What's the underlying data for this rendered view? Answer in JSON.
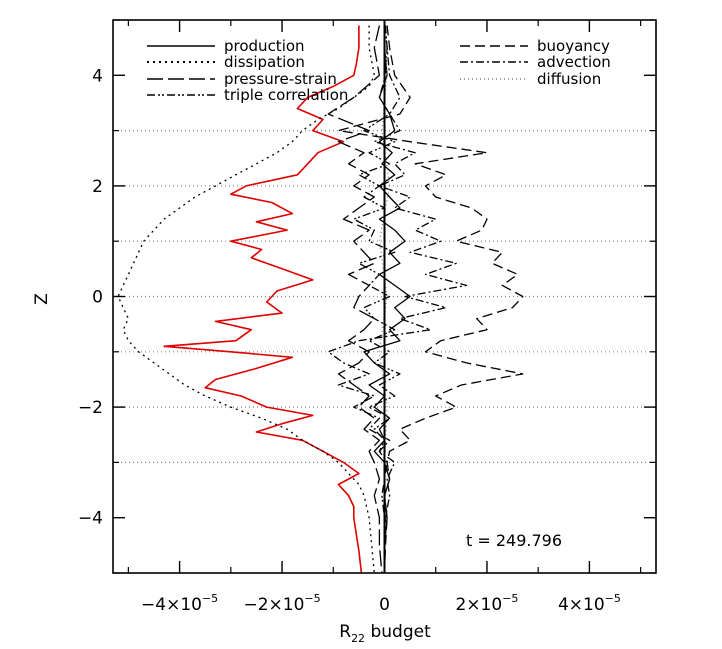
{
  "chart_data": {
    "type": "line",
    "xlabel": "R22 budget",
    "xlabel_main": "R",
    "xlabel_sub": "22",
    "xlabel_rest": " budget",
    "ylabel": "Z",
    "xlim": [
      -5.3e-05,
      5.3e-05
    ],
    "ylim": [
      -5,
      5
    ],
    "x_ticks": [
      {
        "value": -4e-05,
        "mant": "−4×10",
        "exp": "−5"
      },
      {
        "value": -2e-05,
        "mant": "−2×10",
        "exp": "−5"
      },
      {
        "value": 0,
        "mant": "0",
        "exp": ""
      },
      {
        "value": 2e-05,
        "mant": "2×10",
        "exp": "−5"
      },
      {
        "value": 4e-05,
        "mant": "4×10",
        "exp": "−5"
      }
    ],
    "y_ticks": [
      -4,
      -2,
      0,
      2,
      4
    ],
    "gridlines_z": [
      -3,
      -2,
      -1,
      0,
      1,
      2,
      3
    ],
    "annotation": "t = 249.796",
    "legend_left": [
      {
        "label": "production",
        "style": "solid"
      },
      {
        "label": "dissipation",
        "style": "dotted"
      },
      {
        "label": "pressure-strain",
        "style": "longdash"
      },
      {
        "label": "triple correlation",
        "style": "dashdotdot"
      }
    ],
    "legend_right": [
      {
        "label": "buoyancy",
        "style": "dashed"
      },
      {
        "label": "advection",
        "style": "dashdot"
      },
      {
        "label": "diffusion",
        "style": "dotted"
      }
    ],
    "series": [
      {
        "name": "red",
        "color": "#e00000",
        "dash": "",
        "z": [
          4.9,
          4.5,
          4.2,
          4.0,
          3.8,
          3.6,
          3.4,
          3.2,
          3.0,
          2.8,
          2.6,
          2.4,
          2.2,
          2.0,
          1.85,
          1.7,
          1.5,
          1.35,
          1.2,
          1.0,
          0.85,
          0.7,
          0.5,
          0.3,
          0.1,
          -0.1,
          -0.3,
          -0.45,
          -0.6,
          -0.8,
          -0.9,
          -1.0,
          -1.1,
          -1.3,
          -1.5,
          -1.65,
          -1.8,
          -2.0,
          -2.15,
          -2.3,
          -2.45,
          -2.6,
          -2.8,
          -3.0,
          -3.2,
          -3.4,
          -3.6,
          -3.8,
          -4.0,
          -4.3,
          -4.6,
          -5.0
        ],
        "x": [
          -5e-06,
          -5e-06,
          -5.5e-06,
          -6e-06,
          -1e-05,
          -1.5e-05,
          -1.7e-05,
          -1.2e-05,
          -1.4e-05,
          -8e-06,
          -1.3e-05,
          -1.5e-05,
          -1.7e-05,
          -2.7e-05,
          -3e-05,
          -2.2e-05,
          -1.8e-05,
          -2.5e-05,
          -1.9e-05,
          -3e-05,
          -2.4e-05,
          -2.6e-05,
          -2e-05,
          -1.4e-05,
          -2.1e-05,
          -2.3e-05,
          -2e-05,
          -3.3e-05,
          -2.6e-05,
          -2.9e-05,
          -4.3e-05,
          -3e-05,
          -1.8e-05,
          -2.5e-05,
          -3.3e-05,
          -3.5e-05,
          -2.8e-05,
          -2.3e-05,
          -1.4e-05,
          -2e-05,
          -2.5e-05,
          -1.6e-05,
          -1.2e-05,
          -8e-06,
          -5e-06,
          -9e-06,
          -7e-06,
          -6e-06,
          -6e-06,
          -5.5e-06,
          -5e-06,
          -4.5e-06
        ]
      },
      {
        "name": "dissipation",
        "color": "#000000",
        "dash": "2,4",
        "z": [
          4.9,
          4.5,
          4.0,
          3.8,
          3.6,
          3.4,
          3.2,
          3.0,
          2.8,
          2.6,
          2.4,
          2.2,
          2.0,
          1.8,
          1.6,
          1.4,
          1.2,
          1.0,
          0.8,
          0.6,
          0.4,
          0.2,
          0.0,
          -0.2,
          -0.4,
          -0.6,
          -0.8,
          -1.0,
          -1.2,
          -1.4,
          -1.6,
          -1.8,
          -2.0,
          -2.2,
          -2.4,
          -2.6,
          -2.8,
          -3.0,
          -3.2,
          -3.4,
          -3.6,
          -4.0,
          -4.5,
          -5.0
        ],
        "x": [
          -3e-06,
          -3e-06,
          -2e-06,
          -3e-06,
          -6e-06,
          -9e-06,
          -1.3e-05,
          -1.6e-05,
          -1.8e-05,
          -2.1e-05,
          -2.5e-05,
          -2.9e-05,
          -3.3e-05,
          -3.7e-05,
          -4e-05,
          -4.3e-05,
          -4.5e-05,
          -4.7e-05,
          -4.8e-05,
          -4.9e-05,
          -5e-05,
          -5.1e-05,
          -5.2e-05,
          -5.1e-05,
          -5e-05,
          -5.1e-05,
          -5e-05,
          -4.8e-05,
          -4.5e-05,
          -4.2e-05,
          -3.9e-05,
          -3.5e-05,
          -3e-05,
          -2.4e-05,
          -1.9e-05,
          -1.6e-05,
          -1.2e-05,
          -9e-06,
          -7e-06,
          -5e-06,
          -4e-06,
          -3e-06,
          -2.5e-06,
          -2e-06
        ]
      },
      {
        "name": "buoyancy",
        "color": "#000000",
        "dash": "10,5",
        "z": [
          4.9,
          4.5,
          4.0,
          3.6,
          3.3,
          3.0,
          2.8,
          2.6,
          2.4,
          2.2,
          2.0,
          1.8,
          1.6,
          1.4,
          1.2,
          1.0,
          0.8,
          0.6,
          0.4,
          0.2,
          0.0,
          -0.2,
          -0.4,
          -0.6,
          -0.8,
          -1.0,
          -1.2,
          -1.4,
          -1.6,
          -1.8,
          -2.0,
          -2.2,
          -2.4,
          -2.6,
          -2.8,
          -3.0,
          -3.3,
          -3.6,
          -4.0,
          -4.5,
          -5.0
        ],
        "x": [
          5e-07,
          1e-06,
          2e-06,
          5e-06,
          3e-06,
          -9e-06,
          5e-06,
          2e-05,
          6e-06,
          1.2e-05,
          8e-06,
          1e-05,
          1.7e-05,
          2e-05,
          1.9e-05,
          1.4e-05,
          2.3e-05,
          2.1e-05,
          2.6e-05,
          2.3e-05,
          2.7e-05,
          2.5e-05,
          1.8e-05,
          2e-05,
          1.1e-05,
          8e-06,
          1.6e-05,
          2.7e-05,
          1.5e-05,
          1e-05,
          1.4e-05,
          8e-06,
          3e-06,
          5e-06,
          1e-06,
          5e-07,
          1e-06,
          0.0,
          5e-07,
          2e-07,
          0.0
        ]
      },
      {
        "name": "pressure-strain",
        "color": "#000000",
        "dash": "16,5",
        "z": [
          4.9,
          4.5,
          4.0,
          3.6,
          3.3,
          3.0,
          2.8,
          2.6,
          2.4,
          2.2,
          2.0,
          1.8,
          1.6,
          1.4,
          1.2,
          1.0,
          0.8,
          0.6,
          0.4,
          0.2,
          0.0,
          -0.2,
          -0.4,
          -0.6,
          -0.8,
          -1.0,
          -1.2,
          -1.4,
          -1.6,
          -1.8,
          -2.0,
          -2.2,
          -2.4,
          -2.6,
          -2.8,
          -3.0,
          -3.3,
          -3.6,
          -4.0,
          -4.5,
          -5.0
        ],
        "x": [
          -1e-06,
          -2e-06,
          -1e-06,
          -6e-06,
          -1.1e-05,
          -3e-06,
          -9e-06,
          -4e-06,
          -7e-06,
          -3e-06,
          -6e-06,
          -2e-06,
          -5e-06,
          -8e-06,
          -3e-06,
          -6e-06,
          -4e-06,
          -2e-06,
          -7e-06,
          -3e-06,
          -5e-06,
          -6e-06,
          -2e-06,
          -4e-06,
          -7e-06,
          -3e-06,
          -5e-06,
          -9e-06,
          -6e-06,
          -3e-06,
          -5e-06,
          -2e-06,
          -4e-06,
          -1e-06,
          -3e-06,
          -2e-06,
          -1e-06,
          -2e-06,
          -1e-06,
          -1e-06,
          -5e-07
        ]
      },
      {
        "name": "advection",
        "color": "#000000",
        "dash": "8,3,2,3",
        "z": [
          4.9,
          4.5,
          4.0,
          3.6,
          3.3,
          3.0,
          2.8,
          2.6,
          2.4,
          2.2,
          2.0,
          1.8,
          1.6,
          1.4,
          1.2,
          1.0,
          0.8,
          0.6,
          0.4,
          0.2,
          0.0,
          -0.2,
          -0.4,
          -0.6,
          -0.8,
          -1.0,
          -1.2,
          -1.4,
          -1.6,
          -1.8,
          -2.0,
          -2.2,
          -2.4,
          -2.6,
          -2.8,
          -3.0,
          -3.3,
          -3.6,
          -4.0,
          -4.5,
          -5.0
        ],
        "x": [
          2e-07,
          5e-07,
          1e-06,
          3e-06,
          1e-06,
          3e-06,
          -2e-06,
          6e-06,
          2e-06,
          4e-06,
          -1e-06,
          5e-06,
          2e-06,
          1e-05,
          6e-06,
          1.1e-05,
          5e-06,
          1.4e-05,
          8e-06,
          1.6e-05,
          4e-06,
          1.2e-05,
          3e-06,
          9e-06,
          -5e-06,
          -1.1e-05,
          -8e-06,
          -3e-06,
          -9e-06,
          -2e-06,
          -6e-06,
          -1e-06,
          -3e-06,
          1e-06,
          -1e-06,
          2e-06,
          5e-07,
          1e-06,
          2e-07,
          0.0,
          0.0
        ]
      },
      {
        "name": "triple correlation",
        "color": "#000000",
        "dash": "8,3,2,2,2,3",
        "z": [
          4.9,
          4.5,
          4.0,
          3.6,
          3.3,
          3.0,
          2.8,
          2.6,
          2.4,
          2.2,
          2.0,
          1.8,
          1.6,
          1.4,
          1.2,
          1.0,
          0.8,
          0.6,
          0.4,
          0.2,
          0.0,
          -0.2,
          -0.4,
          -0.6,
          -0.8,
          -1.0,
          -1.2,
          -1.4,
          -1.6,
          -1.8,
          -2.0,
          -2.2,
          -2.4,
          -2.6,
          -2.8,
          -3.0,
          -3.3,
          -3.6,
          -4.0,
          -4.5,
          -5.0
        ],
        "x": [
          0.0,
          5e-07,
          2e-07,
          -1e-06,
          1e-06,
          -4e-06,
          2e-06,
          -3e-06,
          1e-06,
          -5e-06,
          -1e-06,
          -4e-06,
          0.0,
          -6e-06,
          -2e-06,
          -3e-06,
          2e-06,
          -5e-06,
          -1e-06,
          -3e-06,
          1e-06,
          -4e-06,
          -2e-06,
          2e-06,
          -3e-06,
          1e-06,
          -2e-06,
          3e-06,
          -1e-06,
          2e-06,
          -3e-06,
          1e-06,
          -2e-06,
          0.0,
          -1e-06,
          5e-07,
          0.0,
          -5e-07,
          0.0,
          0.0,
          0.0
        ]
      },
      {
        "name": "production",
        "color": "#000000",
        "dash": "",
        "z": [
          4.9,
          4.5,
          4.0,
          3.6,
          3.3,
          3.0,
          2.8,
          2.6,
          2.4,
          2.2,
          2.0,
          1.8,
          1.6,
          1.4,
          1.2,
          1.0,
          0.8,
          0.6,
          0.4,
          0.2,
          0.0,
          -0.2,
          -0.4,
          -0.6,
          -0.8,
          -1.0,
          -1.2,
          -1.4,
          -1.6,
          -1.8,
          -2.0,
          -2.2,
          -2.4,
          -2.6,
          -2.8,
          -3.0,
          -3.3,
          -3.6,
          -4.0,
          -4.5,
          -5.0
        ],
        "x": [
          0.0,
          0.0,
          5e-07,
          -1e-06,
          1e-06,
          2e-06,
          -1e-06,
          1.5e-06,
          -5e-07,
          2e-06,
          -1e-06,
          1e-06,
          3e-06,
          -1e-06,
          2e-06,
          4e-06,
          1e-06,
          3e-06,
          -1e-06,
          2e-06,
          5e-06,
          2e-06,
          4e-06,
          1e-06,
          3e-06,
          -4e-06,
          -2e-06,
          1e-06,
          -3e-06,
          0.0,
          -2e-06,
          1e-06,
          -1e-06,
          0.0,
          -2e-06,
          0.0,
          1e-06,
          0.0,
          5e-07,
          0.0,
          0.0
        ]
      },
      {
        "name": "diffusion",
        "color": "#808080",
        "dash": "1,3",
        "z": [
          4.9,
          4.0,
          3.0,
          2.0,
          1.0,
          0.0,
          -1.0,
          -2.0,
          -3.0,
          -4.0,
          -5.0
        ],
        "x": [
          0.0,
          5e-07,
          -5e-07,
          1e-06,
          -1e-06,
          5e-07,
          -1e-06,
          5e-07,
          0.0,
          2e-07,
          0.0
        ]
      }
    ]
  }
}
